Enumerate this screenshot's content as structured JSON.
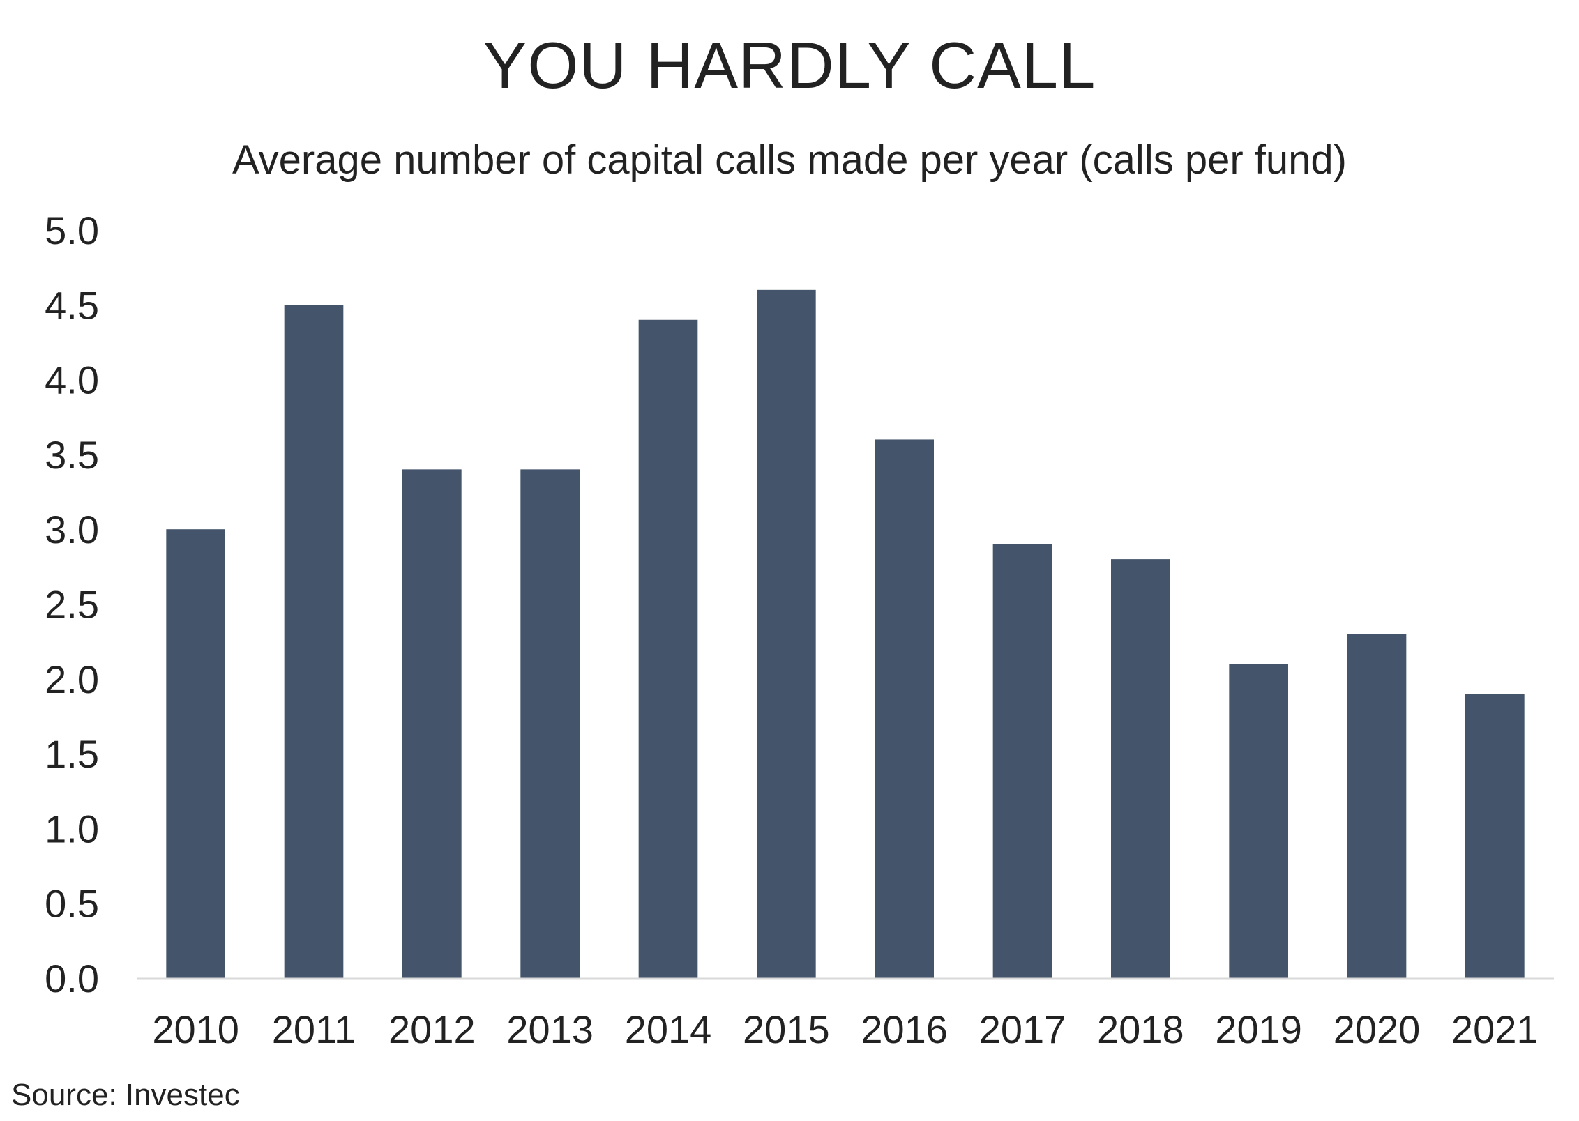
{
  "chart_data": {
    "type": "bar",
    "title": "YOU HARDLY CALL",
    "subtitle": "Average number of capital calls made per year (calls per fund)",
    "categories": [
      "2010",
      "2011",
      "2012",
      "2013",
      "2014",
      "2015",
      "2016",
      "2017",
      "2018",
      "2019",
      "2020",
      "2021"
    ],
    "values": [
      3.0,
      4.5,
      3.4,
      3.4,
      4.4,
      4.6,
      3.6,
      2.9,
      2.8,
      2.1,
      2.3,
      1.9
    ],
    "ylim": [
      0,
      5.0
    ],
    "yticks": [
      "0.0",
      "0.5",
      "1.0",
      "1.5",
      "2.0",
      "2.5",
      "3.0",
      "3.5",
      "4.0",
      "4.5",
      "5.0"
    ],
    "grid": false,
    "legend": "none",
    "bar_color": "#44546a",
    "axis_color": "#d9d9d9"
  },
  "source": "Source: Investec"
}
